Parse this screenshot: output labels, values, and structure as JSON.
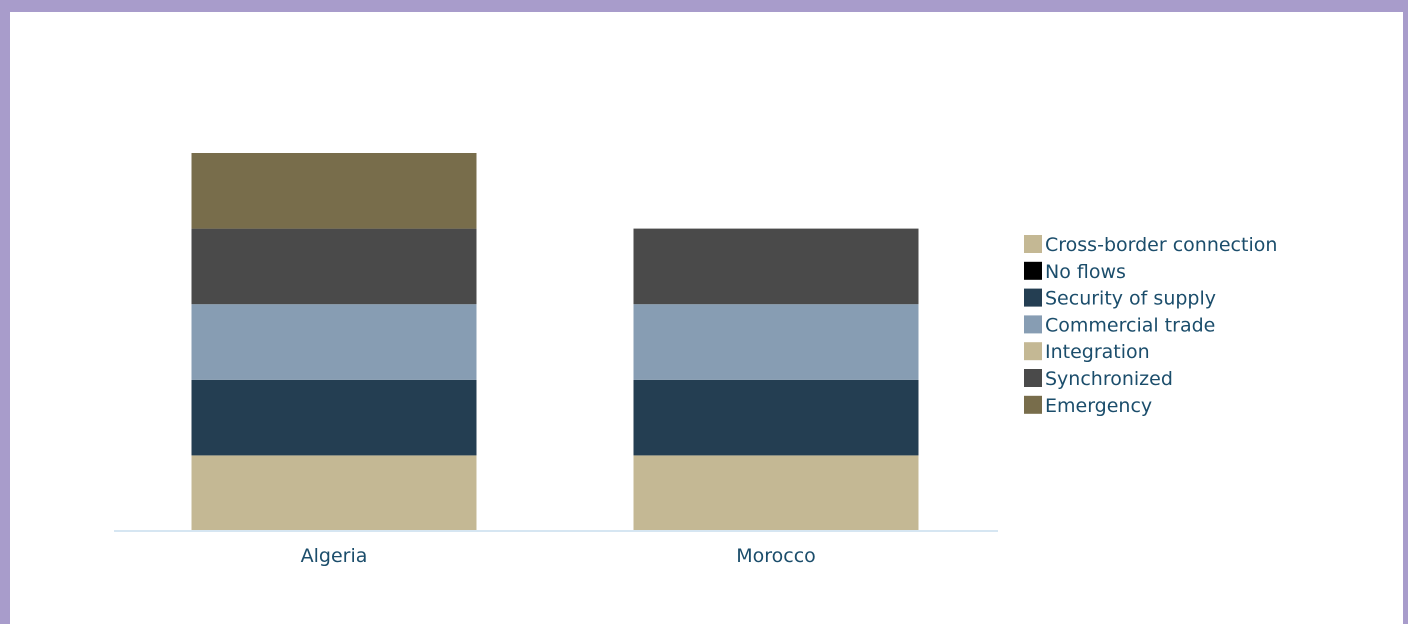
{
  "chart_data": {
    "type": "bar",
    "stacked": true,
    "categories": [
      "Algeria",
      "Morocco"
    ],
    "series": [
      {
        "name": "Cross-border connection",
        "color": "#c4b894",
        "values": [
          0,
          0
        ]
      },
      {
        "name": "No flows",
        "color": "#000000",
        "values": [
          0,
          0
        ]
      },
      {
        "name": "Security of supply",
        "color": "#243e52",
        "values": [
          1,
          1
        ]
      },
      {
        "name": "Commercial trade",
        "color": "#879db3",
        "values": [
          1,
          1
        ]
      },
      {
        "name": "Integration",
        "color": "#c4b894",
        "values": [
          1,
          1
        ]
      },
      {
        "name": "Synchronized",
        "color": "#4a4a4a",
        "values": [
          1,
          1
        ]
      },
      {
        "name": "Emergency",
        "color": "#786d4b",
        "values": [
          1,
          0
        ]
      }
    ],
    "stack_order": [
      "Integration",
      "Security of supply",
      "Commercial trade",
      "Synchronized",
      "Emergency",
      "No flows",
      "Cross-border connection"
    ],
    "ylim": [
      0,
      5
    ],
    "grid": false,
    "legend": "right",
    "axis_color": "#d6e6f2"
  }
}
